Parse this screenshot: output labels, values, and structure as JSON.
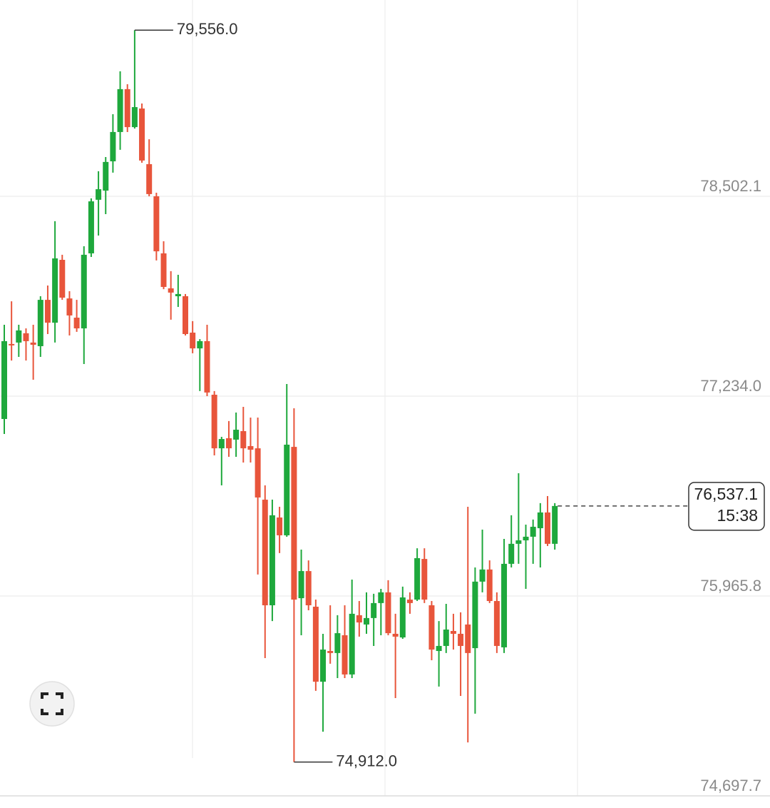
{
  "chart_data": {
    "type": "candlestick",
    "up_color": "#1ea83c",
    "down_color": "#e8553b",
    "grid": true,
    "ylim": [
      74697.7,
      79747.6
    ],
    "yticks": [
      {
        "value": 74697.7,
        "label": "74,697.7"
      },
      {
        "value": 75965.8,
        "label": "75,965.8"
      },
      {
        "value": 77234.0,
        "label": "77,234.0"
      },
      {
        "value": 78502.1,
        "label": "78,502.1"
      }
    ],
    "open": [
      77089,
      77565,
      77574,
      77633,
      77574,
      77551,
      77845,
      77700,
      78099,
      77854,
      77732,
      77664,
      78140,
      78480,
      78538,
      78724,
      78910,
      79182,
      78941,
      79059,
      78706,
      78502,
      78140,
      77918,
      77868,
      77868,
      77637,
      77537,
      77583,
      77243,
      76903,
      76967,
      76958,
      77012,
      76917,
      76903,
      76577,
      75907,
      76464,
      76351,
      76912,
      75952,
      76124,
      75898,
      75422,
      75617,
      75604,
      75717,
      75468,
      75844,
      75785,
      75826,
      75921,
      75989,
      75726,
      75703,
      75943,
      75943,
      76201,
      75907,
      75617,
      75649,
      75744,
      75726,
      75785,
      75635,
      76057,
      76134,
      75934,
      75640,
      76170,
      76297,
      76319,
      76342,
      76396,
      76496,
      76297
    ],
    "high": [
      77687,
      77836,
      77687,
      77664,
      77687,
      77868,
      77936,
      78344,
      78131,
      77900,
      77845,
      78185,
      78489,
      78661,
      78751,
      79023,
      79295,
      79213,
      79556.0,
      79091,
      78864,
      78525,
      78217,
      78027,
      78004,
      77882,
      77710,
      77596,
      77687,
      77266,
      76976,
      77076,
      77130,
      77166,
      77098,
      77098,
      76668,
      76577,
      76532,
      77311,
      77157,
      76260,
      76192,
      75943,
      75726,
      75907,
      75844,
      75907,
      76070,
      75934,
      75989,
      75980,
      76011,
      76066,
      75853,
      76025,
      75989,
      76269,
      76269,
      75934,
      75807,
      75916,
      75853,
      75862,
      76532,
      76147,
      76387,
      76192,
      75989,
      76328,
      76478,
      76745,
      76419,
      76451,
      76555,
      76600,
      76555
    ],
    "low": [
      76994,
      77460,
      77483,
      77460,
      77338,
      77483,
      77628,
      77574,
      77845,
      77619,
      77642,
      77438,
      78117,
      78253,
      78389,
      78652,
      78797,
      78910,
      78932,
      78715,
      78502,
      78095,
      77913,
      77719,
      77800,
      77619,
      77506,
      77266,
      77234,
      76858,
      76668,
      76849,
      76849,
      76813,
      76813,
      76102,
      75572,
      75807,
      76238,
      76342,
      74912.0,
      75717,
      75875,
      75364,
      75105,
      75536,
      75445,
      75445,
      75445,
      75708,
      75726,
      75649,
      75717,
      75717,
      75318,
      75694,
      75853,
      75934,
      75921,
      75558,
      75391,
      75604,
      75626,
      75332,
      75037,
      75219,
      75989,
      75921,
      75604,
      75604,
      76147,
      76170,
      76011,
      76170,
      76147,
      76283,
      76260
    ],
    "close": [
      77583,
      77556,
      77651,
      77583,
      77560,
      77845,
      77700,
      78108,
      77859,
      77746,
      77664,
      78131,
      78470,
      78547,
      78720,
      78910,
      79182,
      78941,
      79068,
      78729,
      78516,
      78153,
      77927,
      77891,
      77882,
      77628,
      77537,
      77583,
      77257,
      76903,
      76962,
      76903,
      77021,
      76903,
      76894,
      76591,
      75907,
      76478,
      76351,
      76926,
      75943,
      76124,
      75907,
      75422,
      75626,
      75604,
      75730,
      75468,
      75853,
      75798,
      75826,
      75921,
      75989,
      75730,
      75708,
      75957,
      75921,
      76206,
      75943,
      75626,
      75649,
      75753,
      75726,
      75649,
      75604,
      76057,
      76134,
      75934,
      75649,
      76170,
      76297,
      76319,
      76342,
      76405,
      76496,
      76297,
      76537.1
    ],
    "high_label": {
      "value": 79556.0,
      "label": "79,556.0"
    },
    "low_label": {
      "value": 74912.0,
      "label": "74,912.0"
    },
    "last_price": {
      "value": 76537.1,
      "label": "76,537.1"
    },
    "countdown": "15:38"
  }
}
